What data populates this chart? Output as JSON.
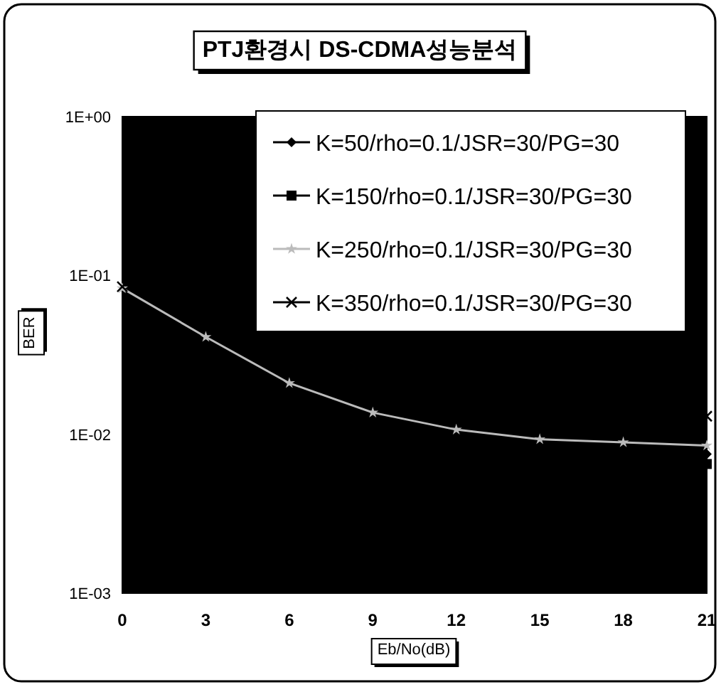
{
  "chart_data": {
    "type": "line",
    "title": "PTJ환경시 DS-CDMA성능분석",
    "xlabel": "Eb/No(dB)",
    "ylabel": "BER",
    "x": [
      0,
      3,
      6,
      9,
      12,
      15,
      18,
      21
    ],
    "series": [
      {
        "name": "K=50/rho=0.1/JSR=30/PG=30",
        "color": "#000000",
        "marker": "diamond",
        "values": [
          null,
          null,
          null,
          null,
          null,
          null,
          null,
          0.0075
        ]
      },
      {
        "name": "K=150/rho=0.1/JSR=30/PG=30",
        "color": "#000000",
        "marker": "square",
        "values": [
          null,
          null,
          null,
          null,
          null,
          null,
          null,
          0.0065
        ]
      },
      {
        "name": "K=250/rho=0.1/JSR=30/PG=30",
        "color": "#bbbbbb",
        "marker": "star",
        "values": [
          0.083,
          0.041,
          0.021,
          0.0137,
          0.0107,
          0.0093,
          0.0089,
          0.0085
        ]
      },
      {
        "name": "K=350/rho=0.1/JSR=30/PG=30",
        "color": "#000000",
        "marker": "cross",
        "values": [
          0.085,
          null,
          null,
          null,
          null,
          null,
          null,
          0.013
        ]
      }
    ],
    "xlim": [
      0,
      21
    ],
    "xticks": [
      0,
      3,
      6,
      9,
      12,
      15,
      18,
      21
    ],
    "ylim": [
      0.001,
      1
    ],
    "yticks": [
      {
        "value": 0.001,
        "label": "1E-03"
      },
      {
        "value": 0.01,
        "label": "1E-02"
      },
      {
        "value": 0.1,
        "label": "1E-01"
      },
      {
        "value": 1,
        "label": "1E+00"
      }
    ],
    "log": "y",
    "legend": "top right"
  }
}
